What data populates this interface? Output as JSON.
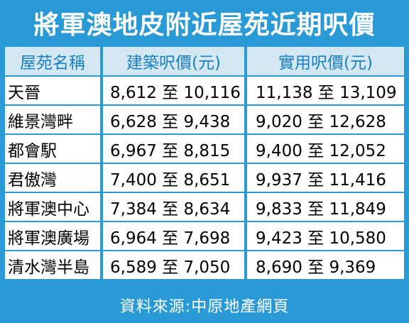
{
  "title": "將軍澳地皮附近屋苑近期呎價",
  "headers": [
    "屋苑名稱",
    "建築呎價(元)",
    "實用呎價(元)"
  ],
  "rows": [
    {
      "name": "天晉",
      "gross": "8,612 至 10,116",
      "saleable": "11,138 至 13,109"
    },
    {
      "name": "維景灣畔",
      "gross": "6,628 至 9,438",
      "saleable": "9,020 至 12,628"
    },
    {
      "name": "都會駅",
      "gross": "6,967 至 8,815",
      "saleable": "9,400 至 12,052"
    },
    {
      "name": "君傲灣",
      "gross": "7,400 至 8,651",
      "saleable": "9,937 至 11,416"
    },
    {
      "name": "將軍澳中心",
      "gross": "7,384 至 8,634",
      "saleable": "9,833 至 11,849"
    },
    {
      "name": "將軍澳廣場",
      "gross": "6,964 至 7,698",
      "saleable": "9,423 至 10,580"
    },
    {
      "name": "清水灣半島",
      "gross": "6,589 至 7,050",
      "saleable": "8,690 至 9,369"
    }
  ],
  "footer": "資料來源:中原地產網頁",
  "colors": {
    "frame": "#2a9ad6",
    "header_bg": "#d4e8f3",
    "header_text": "#1a7fc0"
  }
}
